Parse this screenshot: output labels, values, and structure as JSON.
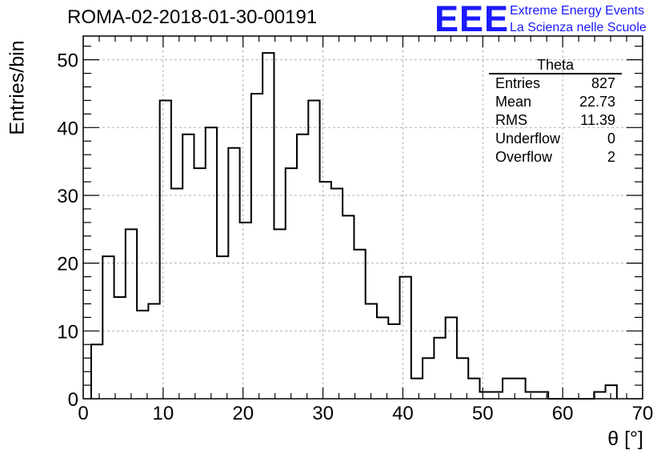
{
  "header": {
    "run_title": "ROMA-02-2018-01-30-00191",
    "logo_text": "EEE",
    "logo_line1": "Extreme Energy Events",
    "logo_line2": "La Scienza nelle Scuole"
  },
  "stats_box": {
    "name": "Theta",
    "rows": [
      {
        "label": "Entries",
        "value": "827"
      },
      {
        "label": "Mean",
        "value": "22.73"
      },
      {
        "label": "RMS",
        "value": "11.39"
      },
      {
        "label": "Underflow",
        "value": "0"
      },
      {
        "label": "Overflow",
        "value": "2"
      }
    ]
  },
  "chart_data": {
    "type": "bar",
    "histogram": true,
    "title": "ROMA-02-2018-01-30-00191",
    "xlabel": "θ [°]",
    "ylabel": "Entries/bin",
    "xlim": [
      0,
      70
    ],
    "ylim": [
      0,
      53.5
    ],
    "xticks": [
      0,
      10,
      20,
      30,
      40,
      50,
      60,
      70
    ],
    "yticks": [
      0,
      10,
      20,
      30,
      40,
      50
    ],
    "grid": true,
    "bin_width": 1.43,
    "bin_start": 1.0,
    "values": [
      8,
      21,
      15,
      25,
      13,
      14,
      44,
      31,
      39,
      34,
      40,
      21,
      37,
      26,
      45,
      51,
      25,
      34,
      39,
      44,
      32,
      31,
      27,
      22,
      14,
      12,
      11,
      18,
      3,
      6,
      9,
      12,
      6,
      3,
      1,
      1,
      3,
      3,
      1,
      1,
      0,
      0,
      0,
      0,
      1,
      2
    ]
  },
  "colors": {
    "line": "#000000",
    "grid": "#b0b0b0",
    "logo": "#1a1aff"
  }
}
